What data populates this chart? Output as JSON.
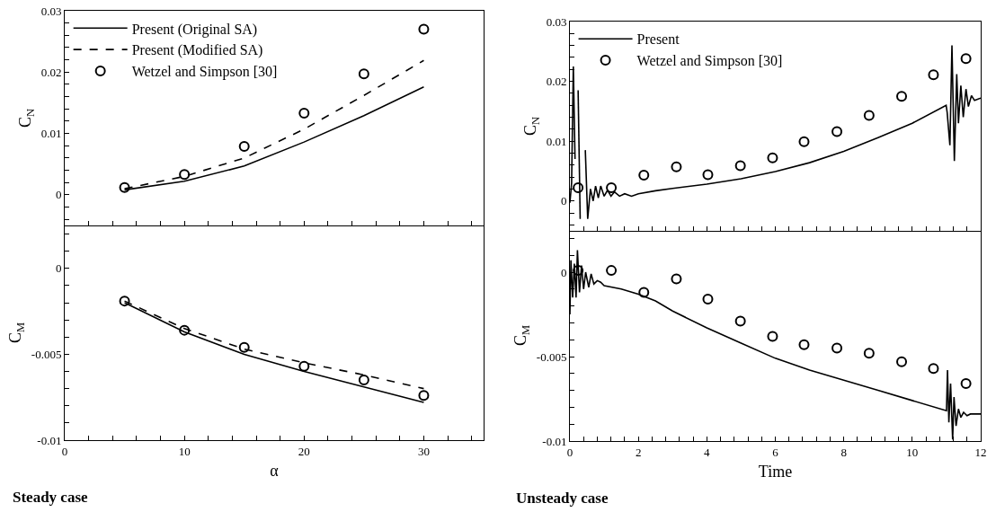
{
  "chart_data": [
    {
      "type": "line",
      "ylabel": "C$_{N}$",
      "legend": "top left",
      "tick_labels": "y",
      "xlim": [
        0,
        35
      ],
      "xticks": [
        0,
        {
          "value": 2,
          "label": null
        },
        {
          "value": 4,
          "label": null
        },
        {
          "value": 6,
          "label": null
        },
        {
          "value": 8,
          "label": null
        },
        10,
        {
          "value": 12,
          "label": null
        },
        {
          "value": 14,
          "label": null
        },
        {
          "value": 16,
          "label": null
        },
        {
          "value": 18,
          "label": null
        },
        20,
        {
          "value": 22,
          "label": null
        },
        {
          "value": 24,
          "label": null
        },
        {
          "value": 26,
          "label": null
        },
        {
          "value": 28,
          "label": null
        },
        30,
        {
          "value": 32,
          "label": null
        },
        {
          "value": 34,
          "label": null
        }
      ],
      "ylim": [
        -0.005,
        0.03
      ],
      "yticks": [
        {
          "value": -0.004,
          "label": null
        },
        {
          "value": -0.002,
          "label": null
        },
        0,
        {
          "value": 0.002,
          "label": null
        },
        {
          "value": 0.004,
          "label": null
        },
        {
          "value": 0.006,
          "label": null
        },
        {
          "value": 0.008,
          "label": null
        },
        0.01,
        {
          "value": 0.012,
          "label": null
        },
        {
          "value": 0.014,
          "label": null
        },
        {
          "value": 0.016,
          "label": null
        },
        {
          "value": 0.018,
          "label": null
        },
        0.02,
        {
          "value": 0.022,
          "label": null
        },
        {
          "value": 0.024,
          "label": null
        },
        {
          "value": 0.026,
          "label": null
        },
        {
          "value": 0.028,
          "label": null
        },
        0.03
      ],
      "series": [
        {
          "name": "Present (Original SA)",
          "type": "line",
          "color": "#000000",
          "line_style": "solid",
          "marker": "none",
          "x": [
            5,
            10,
            15,
            20,
            25,
            30
          ],
          "values": [
            0.0008,
            0.0022,
            0.0047,
            0.0086,
            0.0129,
            0.0176
          ]
        },
        {
          "name": "Present (Modified SA)",
          "type": "line",
          "color": "#000000",
          "line_style": "dashed",
          "marker": "none",
          "x": [
            5,
            10,
            15,
            20,
            25,
            30
          ],
          "values": [
            0.001,
            0.003,
            0.006,
            0.0107,
            0.0162,
            0.0219
          ]
        },
        {
          "name": "Wetzel and Simpson [30]",
          "type": "scatter",
          "color": "#000000",
          "marker": "circle",
          "x": [
            5,
            10,
            15,
            20,
            25,
            30
          ],
          "values": [
            0.0012,
            0.0033,
            0.0079,
            0.0133,
            0.0197,
            0.027
          ]
        }
      ]
    },
    {
      "type": "line",
      "ylabel": "C$_{M}$",
      "xlabel": "α",
      "annotations": [
        "Steady case"
      ],
      "xlim": [
        0,
        35
      ],
      "xticks": [
        0,
        {
          "value": 2,
          "label": null
        },
        {
          "value": 4,
          "label": null
        },
        {
          "value": 6,
          "label": null
        },
        {
          "value": 8,
          "label": null
        },
        10,
        {
          "value": 12,
          "label": null
        },
        {
          "value": 14,
          "label": null
        },
        {
          "value": 16,
          "label": null
        },
        {
          "value": 18,
          "label": null
        },
        20,
        {
          "value": 22,
          "label": null
        },
        {
          "value": 24,
          "label": null
        },
        {
          "value": 26,
          "label": null
        },
        {
          "value": 28,
          "label": null
        },
        30,
        {
          "value": 32,
          "label": null
        },
        {
          "value": 34,
          "label": null
        }
      ],
      "ylim": [
        -0.01,
        0.0025
      ],
      "yticks": [
        -0.01,
        {
          "value": -0.009,
          "label": null
        },
        {
          "value": -0.008,
          "label": null
        },
        {
          "value": -0.007,
          "label": null
        },
        {
          "value": -0.006,
          "label": null
        },
        -0.005,
        {
          "value": -0.004,
          "label": null
        },
        {
          "value": -0.003,
          "label": null
        },
        {
          "value": -0.002,
          "label": null
        },
        {
          "value": -0.001,
          "label": null
        },
        0,
        {
          "value": 0.001,
          "label": null
        },
        {
          "value": 0.002,
          "label": null
        }
      ],
      "series": [
        {
          "type": "line",
          "color": "#000000",
          "line_style": "solid",
          "marker": "none",
          "x": [
            5,
            10,
            15,
            20,
            25,
            30
          ],
          "values": [
            -0.002,
            -0.0037,
            -0.005,
            -0.006,
            -0.0069,
            -0.0078
          ]
        },
        {
          "type": "line",
          "color": "#000000",
          "line_style": "dashed",
          "marker": "none",
          "x": [
            5,
            10,
            15,
            20,
            25,
            30
          ],
          "values": [
            -0.0019,
            -0.0035,
            -0.0047,
            -0.0055,
            -0.0062,
            -0.007
          ]
        },
        {
          "type": "scatter",
          "color": "#000000",
          "marker": "circle",
          "x": [
            5,
            10,
            15,
            20,
            25,
            30
          ],
          "values": [
            -0.0019,
            -0.0036,
            -0.0046,
            -0.0057,
            -0.0065,
            -0.0074
          ]
        }
      ]
    },
    {
      "type": "line",
      "ylabel": "C$_{N}$",
      "legend": "top left",
      "tick_labels": "y",
      "xlim": [
        0,
        12
      ],
      "xticks": [
        0,
        {
          "value": 0.4,
          "label": null
        },
        {
          "value": 0.8,
          "label": null
        },
        {
          "value": 1.2,
          "label": null
        },
        {
          "value": 1.6,
          "label": null
        },
        2,
        {
          "value": 2.4,
          "label": null
        },
        {
          "value": 2.8,
          "label": null
        },
        {
          "value": 3.2,
          "label": null
        },
        {
          "value": 3.6,
          "label": null
        },
        4,
        {
          "value": 4.4,
          "label": null
        },
        {
          "value": 4.8,
          "label": null
        },
        {
          "value": 5.2,
          "label": null
        },
        {
          "value": 5.6,
          "label": null
        },
        6,
        {
          "value": 6.4,
          "label": null
        },
        {
          "value": 6.8,
          "label": null
        },
        {
          "value": 7.2,
          "label": null
        },
        {
          "value": 7.6,
          "label": null
        },
        8,
        {
          "value": 8.4,
          "label": null
        },
        {
          "value": 8.8,
          "label": null
        },
        {
          "value": 9.2,
          "label": null
        },
        {
          "value": 9.6,
          "label": null
        },
        10,
        {
          "value": 10.4,
          "label": null
        },
        {
          "value": 10.8,
          "label": null
        },
        {
          "value": 11.2,
          "label": null
        },
        {
          "value": 11.6,
          "label": null
        },
        12
      ],
      "ylim": [
        -0.005,
        0.03
      ],
      "yticks": [
        {
          "value": -0.004,
          "label": null
        },
        {
          "value": -0.002,
          "label": null
        },
        0,
        {
          "value": 0.002,
          "label": null
        },
        {
          "value": 0.004,
          "label": null
        },
        {
          "value": 0.006,
          "label": null
        },
        {
          "value": 0.008,
          "label": null
        },
        0.01,
        {
          "value": 0.012,
          "label": null
        },
        {
          "value": 0.014,
          "label": null
        },
        {
          "value": 0.016,
          "label": null
        },
        {
          "value": 0.018,
          "label": null
        },
        0.02,
        {
          "value": 0.022,
          "label": null
        },
        {
          "value": 0.024,
          "label": null
        },
        {
          "value": 0.026,
          "label": null
        },
        {
          "value": 0.028,
          "label": null
        },
        0.03
      ],
      "series": [
        {
          "name": "Present",
          "type": "line",
          "color": "#000000",
          "line_style": "solid",
          "marker": "none",
          "x": [
            0,
            0.05,
            0.1,
            0.15,
            0.18,
            0.24,
            0.3,
            0.34,
            0.45,
            0.52,
            0.6,
            0.68,
            0.75,
            0.83,
            0.9,
            1.0,
            1.1,
            1.2,
            1.3,
            1.45,
            1.6,
            1.8,
            2.0,
            2.5,
            3.0,
            4.0,
            5.0,
            6.0,
            7.0,
            8.0,
            9.0,
            10.0,
            10.99,
            11.02,
            11.1,
            11.16,
            11.23,
            11.3,
            11.35,
            11.42,
            11.49,
            11.57,
            11.64,
            11.73,
            11.82,
            12
          ],
          "values": [
            -0.0003,
            0.003,
            0.0225,
            0.007,
            null,
            0.0185,
            -0.003,
            null,
            0.0085,
            -0.003,
            0.002,
            0.0,
            0.0025,
            0.0005,
            0.0025,
            0.0008,
            0.0018,
            0.0008,
            0.0015,
            0.0008,
            0.0012,
            0.0008,
            0.0012,
            0.0017,
            0.0021,
            0.0028,
            0.0037,
            0.0049,
            0.0064,
            0.0083,
            0.0106,
            0.013,
            0.016,
            0.0148,
            0.0093,
            0.026,
            0.0067,
            0.0212,
            0.013,
            0.0193,
            0.014,
            0.0187,
            0.0158,
            0.0176,
            0.0168,
            0.0172
          ]
        },
        {
          "name": "Wetzel and Simpson [30]",
          "type": "scatter",
          "color": "#000000",
          "marker": "circle",
          "x": [
            0.24,
            1.21,
            2.16,
            3.11,
            4.03,
            4.98,
            5.92,
            6.84,
            7.8,
            8.74,
            9.69,
            10.62,
            11.57
          ],
          "values": [
            0.0022,
            0.0022,
            0.0043,
            0.0057,
            0.0044,
            0.0059,
            0.0072,
            0.0099,
            0.0116,
            0.0143,
            0.0175,
            0.0211,
            0.0238
          ]
        }
      ]
    },
    {
      "type": "line",
      "ylabel": "C$_{M}$",
      "xlabel": "Time",
      "annotations": [
        "Unsteady case"
      ],
      "xlim": [
        0,
        12
      ],
      "xticks": [
        0,
        {
          "value": 0.4,
          "label": null
        },
        {
          "value": 0.8,
          "label": null
        },
        {
          "value": 1.2,
          "label": null
        },
        {
          "value": 1.6,
          "label": null
        },
        2,
        {
          "value": 2.4,
          "label": null
        },
        {
          "value": 2.8,
          "label": null
        },
        {
          "value": 3.2,
          "label": null
        },
        {
          "value": 3.6,
          "label": null
        },
        4,
        {
          "value": 4.4,
          "label": null
        },
        {
          "value": 4.8,
          "label": null
        },
        {
          "value": 5.2,
          "label": null
        },
        {
          "value": 5.6,
          "label": null
        },
        6,
        {
          "value": 6.4,
          "label": null
        },
        {
          "value": 6.8,
          "label": null
        },
        {
          "value": 7.2,
          "label": null
        },
        {
          "value": 7.6,
          "label": null
        },
        8,
        {
          "value": 8.4,
          "label": null
        },
        {
          "value": 8.8,
          "label": null
        },
        {
          "value": 9.2,
          "label": null
        },
        {
          "value": 9.6,
          "label": null
        },
        10,
        {
          "value": 10.4,
          "label": null
        },
        {
          "value": 10.8,
          "label": null
        },
        {
          "value": 11.2,
          "label": null
        },
        {
          "value": 11.6,
          "label": null
        },
        12
      ],
      "ylim": [
        -0.01,
        0.0025
      ],
      "yticks": [
        -0.01,
        {
          "value": -0.009,
          "label": null
        },
        {
          "value": -0.008,
          "label": null
        },
        {
          "value": -0.007,
          "label": null
        },
        {
          "value": -0.006,
          "label": null
        },
        -0.005,
        {
          "value": -0.004,
          "label": null
        },
        {
          "value": -0.003,
          "label": null
        },
        {
          "value": -0.002,
          "label": null
        },
        {
          "value": -0.001,
          "label": null
        },
        0,
        {
          "value": 0.001,
          "label": null
        },
        {
          "value": 0.002,
          "label": null
        }
      ],
      "series": [
        {
          "type": "line",
          "color": "#000000",
          "line_style": "solid",
          "marker": "none",
          "x": [
            0,
            0.03,
            0.08,
            0.13,
            0.18,
            0.22,
            0.28,
            0.34,
            0.4,
            0.46,
            0.55,
            0.62,
            0.7,
            0.8,
            0.9,
            1.0,
            1.5,
            2.0,
            2.5,
            3.0,
            4.0,
            5.0,
            6.0,
            7.0,
            8.0,
            9.0,
            10.0,
            11.0,
            11.03,
            11.07,
            11.12,
            11.18,
            11.22,
            11.28,
            11.35,
            11.42,
            11.5,
            11.6,
            11.7,
            12
          ],
          "values": [
            -0.0025,
            0.0007,
            -0.0015,
            0.0005,
            -0.0015,
            0.0013,
            -0.0012,
            0.0004,
            -0.001,
            0.0,
            -0.0009,
            -0.0001,
            -0.0007,
            -0.0005,
            -0.0006,
            -0.0008,
            -0.001,
            -0.0013,
            -0.0017,
            -0.0023,
            -0.0033,
            -0.0042,
            -0.0051,
            -0.0058,
            -0.0064,
            -0.007,
            -0.0076,
            -0.0082,
            -0.0058,
            -0.0089,
            -0.0066,
            -0.0099,
            -0.0074,
            -0.0091,
            -0.0081,
            -0.0086,
            -0.0083,
            -0.0085,
            -0.0084,
            -0.0084
          ]
        },
        {
          "type": "scatter",
          "color": "#000000",
          "marker": "circle",
          "x": [
            0.24,
            1.21,
            2.16,
            3.11,
            4.03,
            4.98,
            5.92,
            6.84,
            7.8,
            8.74,
            9.69,
            10.62,
            11.57
          ],
          "values": [
            0.0001,
            0.0001,
            -0.0012,
            -0.0004,
            -0.0016,
            -0.0029,
            -0.0038,
            -0.0043,
            -0.0045,
            -0.0048,
            -0.0053,
            -0.0057,
            -0.0066
          ]
        }
      ]
    }
  ]
}
